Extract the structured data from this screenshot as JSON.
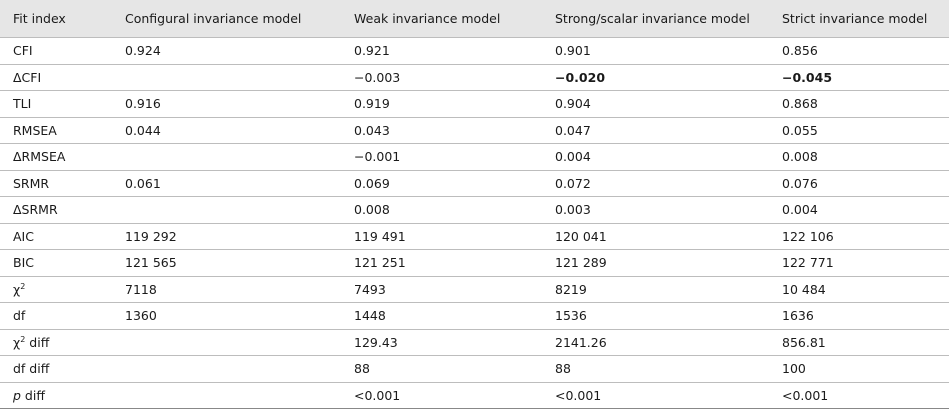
{
  "table": {
    "header": [
      "Fit index",
      "Configural invariance model",
      "Weak invariance model",
      "Strong/scalar invariance model",
      "Strict invariance model"
    ],
    "rows": [
      {
        "label": [
          {
            "text": "CFI"
          }
        ],
        "values": [
          "0.924",
          "0.921",
          "0.901",
          "0.856"
        ]
      },
      {
        "label": [
          {
            "text": "ΔCFI"
          }
        ],
        "values": [
          null,
          "−0.003",
          "−0.020",
          "−0.045"
        ],
        "bold": [
          false,
          false,
          true,
          true
        ]
      },
      {
        "label": [
          {
            "text": "TLI"
          }
        ],
        "values": [
          "0.916",
          "0.919",
          "0.904",
          "0.868"
        ]
      },
      {
        "label": [
          {
            "text": "RMSEA"
          }
        ],
        "values": [
          "0.044",
          "0.043",
          "0.047",
          "0.055"
        ]
      },
      {
        "label": [
          {
            "text": "ΔRMSEA"
          }
        ],
        "values": [
          null,
          "−0.001",
          "0.004",
          "0.008"
        ]
      },
      {
        "label": [
          {
            "text": "SRMR"
          }
        ],
        "values": [
          "0.061",
          "0.069",
          "0.072",
          "0.076"
        ]
      },
      {
        "label": [
          {
            "text": "ΔSRMR"
          }
        ],
        "values": [
          null,
          "0.008",
          "0.003",
          "0.004"
        ]
      },
      {
        "label": [
          {
            "text": "AIC"
          }
        ],
        "values": [
          "119 292",
          "119 491",
          "120 041",
          "122 106"
        ]
      },
      {
        "label": [
          {
            "text": "BIC"
          }
        ],
        "values": [
          "121 565",
          "121 251",
          "121 289",
          "122 771"
        ]
      },
      {
        "label": [
          {
            "text": "χ"
          },
          {
            "text": "2",
            "style": "sup"
          }
        ],
        "values": [
          "7118",
          "7493",
          "8219",
          "10 484"
        ]
      },
      {
        "label": [
          {
            "text": "df"
          }
        ],
        "values": [
          "1360",
          "1448",
          "1536",
          "1636"
        ]
      },
      {
        "label": [
          {
            "text": "χ"
          },
          {
            "text": "2",
            "style": "sup"
          },
          {
            "text": " diff"
          }
        ],
        "values": [
          null,
          "129.43",
          "2141.26",
          "856.81"
        ]
      },
      {
        "label": [
          {
            "text": "df diff"
          }
        ],
        "values": [
          null,
          "88",
          "88",
          "100"
        ]
      },
      {
        "label": [
          {
            "text": "p",
            "style": "italic"
          },
          {
            "text": " diff"
          }
        ],
        "values": [
          null,
          "<0.001",
          "<0.001",
          "<0.001"
        ]
      }
    ]
  }
}
